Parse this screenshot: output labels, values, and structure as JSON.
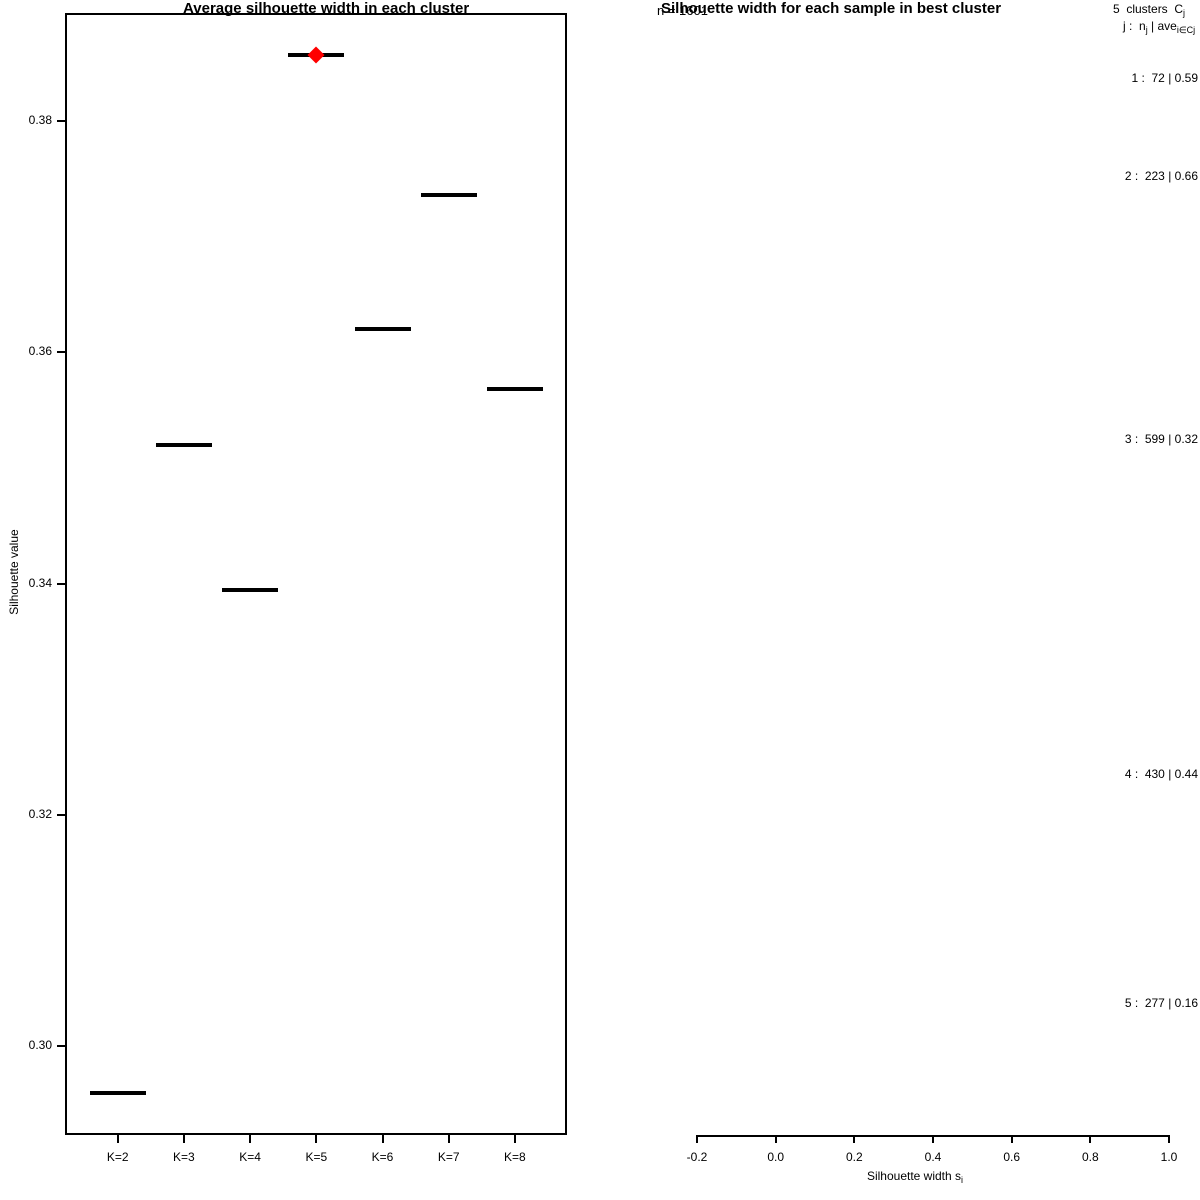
{
  "chart_data": [
    {
      "type": "line",
      "title": "Average silhouette width in each cluster",
      "xlabel": "",
      "ylabel": "Silhouette value",
      "categories": [
        "K=2",
        "K=3",
        "K=4",
        "K=5",
        "K=6",
        "K=7",
        "K=8"
      ],
      "values": [
        0.2959,
        0.352,
        0.3394,
        0.3857,
        0.362,
        0.3736,
        0.3568
      ],
      "best": {
        "category": "K=5",
        "value": 0.3857,
        "shape": "diamond",
        "color": "#ff0000"
      },
      "y_ticks": [
        "0.38",
        "0.36",
        "0.34",
        "0.32",
        "0.30"
      ],
      "ylim": [
        0.292,
        0.389
      ],
      "grid": false,
      "marker_style": "short horizontal black segment per category",
      "frame": "full box"
    },
    {
      "type": "silhouette",
      "title": "Silhouette width for each sample in best cluster",
      "n_label": "n = 1601",
      "legend_line1": {
        "text": "5  clusters  C",
        "sub": "j"
      },
      "legend_line2": {
        "lead": "j :  n",
        "lead_sub": "j",
        "mid": " | ave",
        "mid_sub": "i∈Cj",
        "tail": "  s",
        "tail_sub": "i"
      },
      "clusters": [
        {
          "j": "1",
          "n": "72",
          "avg": "0.59",
          "label": "1 :  72 | 0.59"
        },
        {
          "j": "2",
          "n": "223",
          "avg": "0.66",
          "label": "2 :  223 | 0.66"
        },
        {
          "j": "3",
          "n": "599",
          "avg": "0.32",
          "label": "3 :  599 | 0.32"
        },
        {
          "j": "4",
          "n": "430",
          "avg": "0.44",
          "label": "4 :  430 | 0.44"
        },
        {
          "j": "5",
          "n": "277",
          "avg": "0.16",
          "label": "5 :  277 | 0.16"
        }
      ],
      "x_ticks": [
        "-0.2",
        "0.0",
        "0.2",
        "0.4",
        "0.6",
        "0.8",
        "1.0"
      ],
      "xlim": [
        -0.2,
        1.0
      ],
      "xlabel": {
        "text": "Silhouette width s",
        "sub": "i"
      },
      "bars_visible": false,
      "grid": false
    }
  ]
}
